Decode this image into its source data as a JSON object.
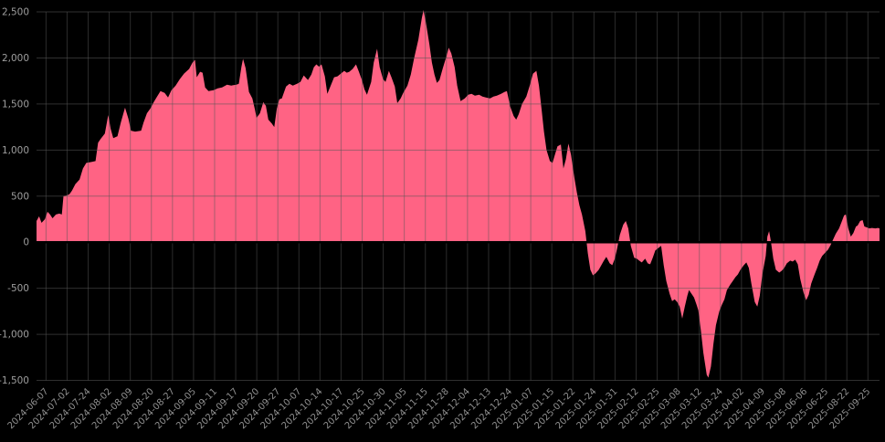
{
  "chart_data": {
    "type": "area",
    "series_name": "value",
    "ylim": [
      -1500,
      2500
    ],
    "grid": true,
    "legend": "none",
    "colors": {
      "background": "#000000",
      "area_fill": "#FF6384",
      "gridline": "#555555",
      "zero_line": "#000000",
      "y_tick_text": "#9e9e9e",
      "x_tick_text": "#8f8f8f"
    },
    "y_tick_values": [
      2500,
      2000,
      1500,
      1000,
      500,
      0,
      -500,
      -1000,
      -1500
    ],
    "y_tick_labels": [
      "2,500",
      "2,000",
      "1,500",
      "1,000",
      "500",
      "0",
      "-500",
      "-1,000",
      "-1,500"
    ],
    "x_labels": [
      "2024-06-07",
      "2024-07-02",
      "2024-07-24",
      "2024-08-02",
      "2024-08-09",
      "2024-08-20",
      "2024-08-27",
      "2024-09-05",
      "2024-09-11",
      "2024-09-17",
      "2024-09-20",
      "2024-09-27",
      "2024-10-07",
      "2024-10-14",
      "2024-10-17",
      "2024-10-25",
      "2024-10-30",
      "2024-11-05",
      "2024-11-15",
      "2024-11-28",
      "2024-12-04",
      "2024-12-13",
      "2024-12-24",
      "2025-01-07",
      "2025-01-15",
      "2025-01-22",
      "2025-01-24",
      "2025-01-31",
      "2025-02-12",
      "2025-02-25",
      "2025-03-08",
      "2025-03-12",
      "2025-03-24",
      "2025-04-02",
      "2025-04-09",
      "2025-05-08",
      "2025-06-06",
      "2025-06-25",
      "2025-08-22",
      "2025-09-25"
    ],
    "points": [
      [
        0.0,
        230
      ],
      [
        0.003,
        280
      ],
      [
        0.006,
        210
      ],
      [
        0.01,
        250
      ],
      [
        0.013,
        330
      ],
      [
        0.016,
        300
      ],
      [
        0.019,
        260
      ],
      [
        0.023,
        300
      ],
      [
        0.027,
        310
      ],
      [
        0.03,
        300
      ],
      [
        0.032,
        500
      ],
      [
        0.035,
        505
      ],
      [
        0.039,
        520
      ],
      [
        0.042,
        560
      ],
      [
        0.046,
        630
      ],
      [
        0.051,
        680
      ],
      [
        0.055,
        800
      ],
      [
        0.059,
        860
      ],
      [
        0.065,
        870
      ],
      [
        0.07,
        880
      ],
      [
        0.073,
        1080
      ],
      [
        0.076,
        1120
      ],
      [
        0.081,
        1180
      ],
      [
        0.085,
        1380
      ],
      [
        0.088,
        1230
      ],
      [
        0.091,
        1130
      ],
      [
        0.096,
        1150
      ],
      [
        0.1,
        1300
      ],
      [
        0.105,
        1460
      ],
      [
        0.109,
        1340
      ],
      [
        0.112,
        1210
      ],
      [
        0.117,
        1200
      ],
      [
        0.124,
        1210
      ],
      [
        0.127,
        1300
      ],
      [
        0.131,
        1400
      ],
      [
        0.135,
        1450
      ],
      [
        0.139,
        1520
      ],
      [
        0.143,
        1580
      ],
      [
        0.147,
        1640
      ],
      [
        0.152,
        1620
      ],
      [
        0.156,
        1570
      ],
      [
        0.16,
        1650
      ],
      [
        0.165,
        1700
      ],
      [
        0.17,
        1770
      ],
      [
        0.175,
        1830
      ],
      [
        0.181,
        1880
      ],
      [
        0.185,
        1950
      ],
      [
        0.188,
        1980
      ],
      [
        0.19,
        1790
      ],
      [
        0.194,
        1850
      ],
      [
        0.197,
        1840
      ],
      [
        0.2,
        1680
      ],
      [
        0.204,
        1640
      ],
      [
        0.21,
        1650
      ],
      [
        0.215,
        1670
      ],
      [
        0.22,
        1680
      ],
      [
        0.226,
        1710
      ],
      [
        0.231,
        1700
      ],
      [
        0.237,
        1710
      ],
      [
        0.24,
        1720
      ],
      [
        0.243,
        1900
      ],
      [
        0.245,
        1990
      ],
      [
        0.248,
        1890
      ],
      [
        0.252,
        1630
      ],
      [
        0.256,
        1560
      ],
      [
        0.259,
        1440
      ],
      [
        0.261,
        1350
      ],
      [
        0.265,
        1400
      ],
      [
        0.269,
        1520
      ],
      [
        0.272,
        1480
      ],
      [
        0.275,
        1330
      ],
      [
        0.279,
        1290
      ],
      [
        0.282,
        1250
      ],
      [
        0.285,
        1450
      ],
      [
        0.288,
        1550
      ],
      [
        0.291,
        1560
      ],
      [
        0.296,
        1690
      ],
      [
        0.3,
        1720
      ],
      [
        0.304,
        1700
      ],
      [
        0.309,
        1720
      ],
      [
        0.313,
        1740
      ],
      [
        0.317,
        1810
      ],
      [
        0.322,
        1760
      ],
      [
        0.326,
        1820
      ],
      [
        0.329,
        1900
      ],
      [
        0.332,
        1930
      ],
      [
        0.335,
        1905
      ],
      [
        0.338,
        1930
      ],
      [
        0.342,
        1800
      ],
      [
        0.345,
        1610
      ],
      [
        0.349,
        1700
      ],
      [
        0.353,
        1790
      ],
      [
        0.357,
        1800
      ],
      [
        0.361,
        1830
      ],
      [
        0.365,
        1860
      ],
      [
        0.368,
        1840
      ],
      [
        0.371,
        1850
      ],
      [
        0.375,
        1880
      ],
      [
        0.379,
        1930
      ],
      [
        0.382,
        1860
      ],
      [
        0.386,
        1760
      ],
      [
        0.389,
        1660
      ],
      [
        0.392,
        1600
      ],
      [
        0.397,
        1740
      ],
      [
        0.4,
        1950
      ],
      [
        0.404,
        2100
      ],
      [
        0.407,
        1900
      ],
      [
        0.411,
        1770
      ],
      [
        0.414,
        1740
      ],
      [
        0.418,
        1860
      ],
      [
        0.421,
        1790
      ],
      [
        0.425,
        1690
      ],
      [
        0.428,
        1510
      ],
      [
        0.432,
        1560
      ],
      [
        0.435,
        1620
      ],
      [
        0.44,
        1700
      ],
      [
        0.444,
        1820
      ],
      [
        0.448,
        2000
      ],
      [
        0.453,
        2200
      ],
      [
        0.457,
        2430
      ],
      [
        0.459,
        2520
      ],
      [
        0.462,
        2380
      ],
      [
        0.466,
        2150
      ],
      [
        0.469,
        1950
      ],
      [
        0.472,
        1820
      ],
      [
        0.475,
        1730
      ],
      [
        0.478,
        1760
      ],
      [
        0.482,
        1890
      ],
      [
        0.486,
        2010
      ],
      [
        0.489,
        2110
      ],
      [
        0.492,
        2050
      ],
      [
        0.496,
        1900
      ],
      [
        0.499,
        1700
      ],
      [
        0.503,
        1530
      ],
      [
        0.508,
        1560
      ],
      [
        0.512,
        1600
      ],
      [
        0.516,
        1610
      ],
      [
        0.52,
        1590
      ],
      [
        0.525,
        1600
      ],
      [
        0.529,
        1580
      ],
      [
        0.533,
        1570
      ],
      [
        0.538,
        1560
      ],
      [
        0.542,
        1580
      ],
      [
        0.546,
        1590
      ],
      [
        0.551,
        1610
      ],
      [
        0.555,
        1630
      ],
      [
        0.558,
        1640
      ],
      [
        0.562,
        1470
      ],
      [
        0.566,
        1370
      ],
      [
        0.569,
        1330
      ],
      [
        0.572,
        1390
      ],
      [
        0.576,
        1500
      ],
      [
        0.581,
        1580
      ],
      [
        0.585,
        1700
      ],
      [
        0.589,
        1830
      ],
      [
        0.593,
        1860
      ],
      [
        0.596,
        1700
      ],
      [
        0.599,
        1450
      ],
      [
        0.602,
        1200
      ],
      [
        0.605,
        1000
      ],
      [
        0.609,
        880
      ],
      [
        0.612,
        860
      ],
      [
        0.615,
        950
      ],
      [
        0.618,
        1040
      ],
      [
        0.622,
        1060
      ],
      [
        0.625,
        800
      ],
      [
        0.628,
        900
      ],
      [
        0.631,
        1070
      ],
      [
        0.634,
        950
      ],
      [
        0.638,
        700
      ],
      [
        0.641,
        540
      ],
      [
        0.644,
        400
      ],
      [
        0.647,
        300
      ],
      [
        0.651,
        120
      ],
      [
        0.654,
        -120
      ],
      [
        0.657,
        -300
      ],
      [
        0.66,
        -360
      ],
      [
        0.663,
        -340
      ],
      [
        0.667,
        -300
      ],
      [
        0.67,
        -250
      ],
      [
        0.673,
        -200
      ],
      [
        0.676,
        -160
      ],
      [
        0.68,
        -230
      ],
      [
        0.683,
        -250
      ],
      [
        0.686,
        -180
      ],
      [
        0.689,
        -60
      ],
      [
        0.692,
        80
      ],
      [
        0.696,
        190
      ],
      [
        0.699,
        230
      ],
      [
        0.702,
        150
      ],
      [
        0.705,
        -40
      ],
      [
        0.709,
        -170
      ],
      [
        0.712,
        -180
      ],
      [
        0.715,
        -200
      ],
      [
        0.718,
        -220
      ],
      [
        0.722,
        -180
      ],
      [
        0.725,
        -230
      ],
      [
        0.728,
        -240
      ],
      [
        0.731,
        -170
      ],
      [
        0.734,
        -90
      ],
      [
        0.738,
        -60
      ],
      [
        0.741,
        -40
      ],
      [
        0.744,
        -250
      ],
      [
        0.747,
        -420
      ],
      [
        0.751,
        -560
      ],
      [
        0.754,
        -640
      ],
      [
        0.757,
        -620
      ],
      [
        0.76,
        -650
      ],
      [
        0.763,
        -700
      ],
      [
        0.766,
        -830
      ],
      [
        0.769,
        -700
      ],
      [
        0.772,
        -580
      ],
      [
        0.774,
        -520
      ],
      [
        0.777,
        -560
      ],
      [
        0.78,
        -600
      ],
      [
        0.783,
        -680
      ],
      [
        0.785,
        -740
      ],
      [
        0.788,
        -950
      ],
      [
        0.791,
        -1200
      ],
      [
        0.795,
        -1440
      ],
      [
        0.797,
        -1470
      ],
      [
        0.8,
        -1350
      ],
      [
        0.803,
        -1100
      ],
      [
        0.806,
        -900
      ],
      [
        0.81,
        -750
      ],
      [
        0.813,
        -680
      ],
      [
        0.816,
        -620
      ],
      [
        0.819,
        -520
      ],
      [
        0.823,
        -460
      ],
      [
        0.826,
        -420
      ],
      [
        0.829,
        -380
      ],
      [
        0.832,
        -350
      ],
      [
        0.835,
        -300
      ],
      [
        0.839,
        -250
      ],
      [
        0.842,
        -220
      ],
      [
        0.845,
        -280
      ],
      [
        0.848,
        -450
      ],
      [
        0.852,
        -650
      ],
      [
        0.855,
        -700
      ],
      [
        0.858,
        -580
      ],
      [
        0.861,
        -350
      ],
      [
        0.865,
        -150
      ],
      [
        0.867,
        60
      ],
      [
        0.869,
        120
      ],
      [
        0.871,
        20
      ],
      [
        0.874,
        -180
      ],
      [
        0.877,
        -300
      ],
      [
        0.881,
        -330
      ],
      [
        0.884,
        -310
      ],
      [
        0.887,
        -280
      ],
      [
        0.89,
        -230
      ],
      [
        0.894,
        -200
      ],
      [
        0.897,
        -210
      ],
      [
        0.9,
        -190
      ],
      [
        0.903,
        -240
      ],
      [
        0.906,
        -400
      ],
      [
        0.91,
        -550
      ],
      [
        0.913,
        -630
      ],
      [
        0.916,
        -570
      ],
      [
        0.919,
        -450
      ],
      [
        0.923,
        -350
      ],
      [
        0.926,
        -280
      ],
      [
        0.929,
        -200
      ],
      [
        0.932,
        -150
      ],
      [
        0.935,
        -120
      ],
      [
        0.939,
        -80
      ],
      [
        0.942,
        -30
      ],
      [
        0.945,
        30
      ],
      [
        0.948,
        90
      ],
      [
        0.952,
        150
      ],
      [
        0.955,
        220
      ],
      [
        0.958,
        290
      ],
      [
        0.96,
        300
      ],
      [
        0.963,
        150
      ],
      [
        0.966,
        60
      ],
      [
        0.969,
        100
      ],
      [
        0.972,
        170
      ],
      [
        0.974,
        180
      ],
      [
        0.977,
        230
      ],
      [
        0.98,
        240
      ],
      [
        0.982,
        170
      ],
      [
        0.985,
        160
      ],
      [
        0.988,
        150
      ],
      [
        0.991,
        155
      ],
      [
        0.995,
        150
      ],
      [
        0.998,
        155
      ],
      [
        1.0,
        150
      ]
    ]
  }
}
